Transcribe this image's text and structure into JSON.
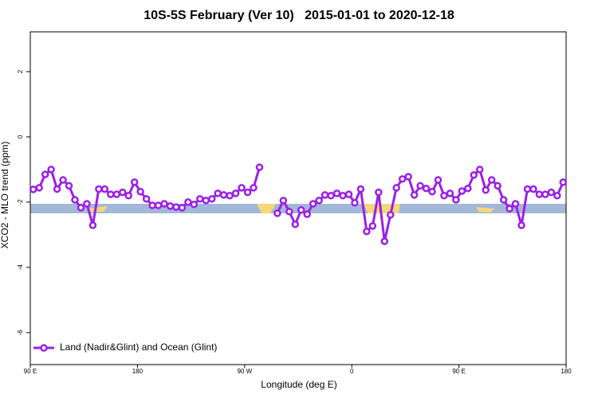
{
  "chart_data": {
    "type": "line",
    "title": "10S-5S February (Ver 10)   2015-01-01 to 2020-12-18",
    "xlabel": "Longitude (deg E)",
    "ylabel": "XCO2 - MLO trend (ppm)",
    "xlim": [
      90,
      540
    ],
    "xticks": [
      {
        "value": 90,
        "label": "90 E"
      },
      180,
      {
        "value": 270,
        "label": "90 W"
      },
      {
        "value": 360,
        "label": "0"
      },
      {
        "value": 450,
        "label": "90 E"
      },
      {
        "value": 540,
        "label": "180"
      }
    ],
    "ylim": [
      -6.98,
      3.22
    ],
    "yticks": [
      -6,
      -4,
      -2,
      0,
      2
    ],
    "legend": "bottom-left",
    "x": [
      92.5,
      97.5,
      102.5,
      107.5,
      112.5,
      117.5,
      122.5,
      127.5,
      132.5,
      137.5,
      142.5,
      147.5,
      152.5,
      157.5,
      162.5,
      167.5,
      172.5,
      177.5,
      182.5,
      187.5,
      192.5,
      197.5,
      202.5,
      207.5,
      212.5,
      217.5,
      222.5,
      227.5,
      232.5,
      237.5,
      242.5,
      247.5,
      252.5,
      257.5,
      262.5,
      267.5,
      272.5,
      277.5,
      282.5,
      287.5,
      292.5,
      297.5,
      302.5,
      307.5,
      312.5,
      317.5,
      322.5,
      327.5,
      332.5,
      337.5,
      342.5,
      347.5,
      352.5,
      357.5,
      362.5,
      367.5,
      372.5,
      377.5,
      382.5,
      387.5,
      392.5,
      397.5,
      402.5,
      407.5,
      412.5,
      417.5,
      422.5,
      427.5,
      432.5,
      437.5,
      442.5,
      447.5,
      452.5,
      457.5,
      462.5,
      467.5,
      472.5,
      477.5,
      482.5,
      487.5,
      492.5,
      497.5,
      502.5,
      507.5,
      512.5,
      517.5,
      522.5,
      527.5,
      532.5,
      537.5
    ],
    "series": [
      {
        "name": "Land (Nadir&Glint) and Ocean (Glint)",
        "color": "#9b1fe8",
        "values": [
          -1.61,
          -1.56,
          -1.15,
          -1.0,
          -1.6,
          -1.32,
          -1.5,
          -1.93,
          -2.17,
          -2.05,
          -2.71,
          -1.6,
          -1.6,
          -1.76,
          -1.76,
          -1.7,
          -1.8,
          -1.39,
          -1.68,
          -1.9,
          -2.1,
          -2.1,
          -2.05,
          -2.12,
          -2.15,
          -2.17,
          -2.0,
          -2.07,
          -1.9,
          -1.95,
          -1.9,
          -1.73,
          -1.78,
          -1.8,
          -1.73,
          -1.56,
          -1.7,
          -1.56,
          -0.93,
          null,
          null,
          -2.34,
          -1.95,
          -2.29,
          -2.68,
          -2.24,
          -2.37,
          -2.05,
          -1.95,
          -1.78,
          -1.8,
          -1.73,
          -1.8,
          -1.76,
          -2.02,
          -1.6,
          -2.9,
          -2.73,
          -1.7,
          -3.2,
          -2.39,
          -1.56,
          -1.29,
          -1.22,
          -1.78,
          -1.5,
          -1.58,
          -1.68,
          -1.32,
          -1.8,
          -1.73,
          -1.93,
          -1.66,
          -1.58,
          -1.17,
          -1.0,
          -1.63,
          -1.32,
          -1.5,
          -1.93,
          -2.2,
          -2.05,
          -2.71,
          -1.6,
          -1.6,
          -1.76,
          -1.76,
          -1.7,
          -1.8,
          -1.39
        ]
      }
    ]
  }
}
